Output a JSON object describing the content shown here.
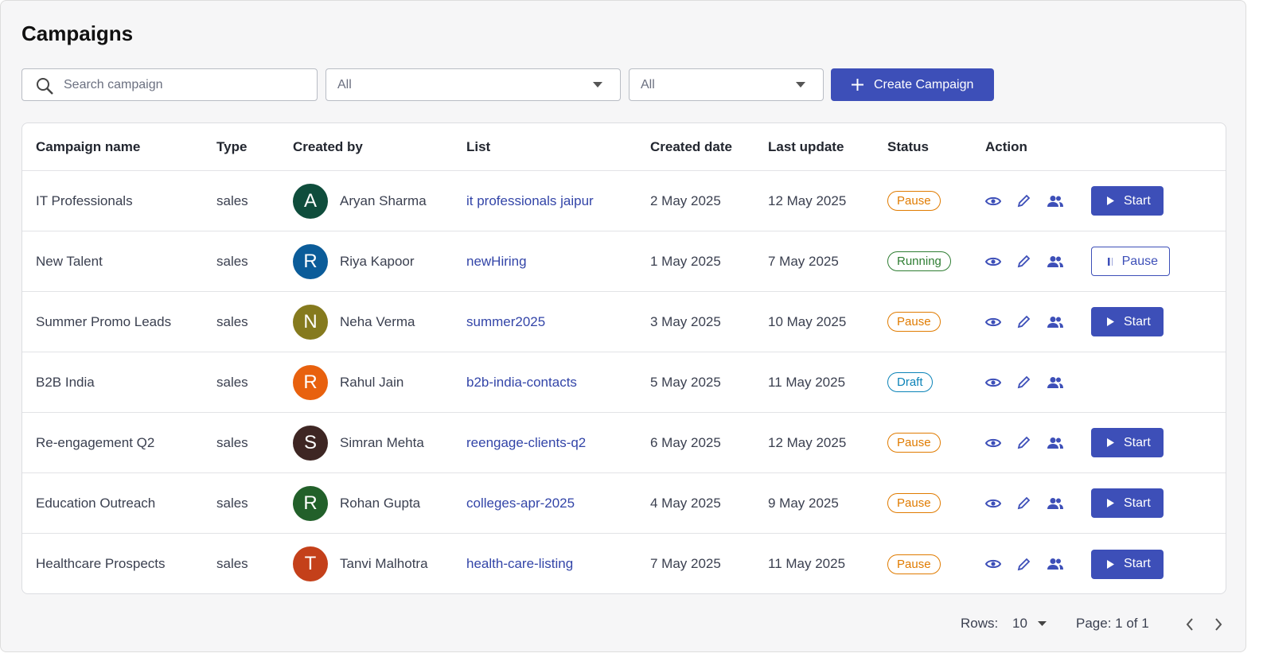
{
  "header": {
    "title": "Campaigns"
  },
  "toolbar": {
    "search_placeholder": "Search campaign",
    "filter_1": "All",
    "filter_2": "All",
    "create_button": "Create Campaign"
  },
  "table": {
    "columns": [
      "Campaign name",
      "Type",
      "Created by",
      "List",
      "Created date",
      "Last update",
      "Status",
      "Action"
    ],
    "rows": [
      {
        "name": "IT Professionals",
        "type": "sales",
        "initial": "A",
        "avatar_color": "#0f4d3c",
        "creator": "Aryan Sharma",
        "list": "it professionals jaipur",
        "created": "2 May 2025",
        "updated": "12 May 2025",
        "status": "Pause",
        "status_color": "#e07b00",
        "action": {
          "label": "Start",
          "style": "filled"
        }
      },
      {
        "name": "New Talent",
        "type": "sales",
        "initial": "R",
        "avatar_color": "#0b5c99",
        "creator": "Riya Kapoor",
        "list": "newHiring",
        "created": "1 May 2025",
        "updated": "7 May 2025",
        "status": "Running",
        "status_color": "#2e7d32",
        "action": {
          "label": "Pause",
          "style": "outlined"
        }
      },
      {
        "name": "Summer Promo Leads",
        "type": "sales",
        "initial": "N",
        "avatar_color": "#857a1e",
        "creator": "Neha Verma",
        "list": "summer2025",
        "created": "3 May 2025",
        "updated": "10 May 2025",
        "status": "Pause",
        "status_color": "#e07b00",
        "action": {
          "label": "Start",
          "style": "filled"
        }
      },
      {
        "name": "B2B India",
        "type": "sales",
        "initial": "R",
        "avatar_color": "#e8610e",
        "creator": "Rahul Jain",
        "list": "b2b-india-contacts",
        "created": "5 May 2025",
        "updated": "11 May 2025",
        "status": "Draft",
        "status_color": "#0b83b8"
      },
      {
        "name": "Re-engagement Q2",
        "type": "sales",
        "initial": "S",
        "avatar_color": "#3e2623",
        "creator": "Simran Mehta",
        "list": "reengage-clients-q2",
        "created": "6 May 2025",
        "updated": "12 May 2025",
        "status": "Pause",
        "status_color": "#e07b00",
        "action": {
          "label": "Start",
          "style": "filled"
        }
      },
      {
        "name": "Education Outreach",
        "type": "sales",
        "initial": "R",
        "avatar_color": "#22602a",
        "creator": "Rohan Gupta",
        "list": "colleges-apr-2025",
        "created": "4 May 2025",
        "updated": "9 May 2025",
        "status": "Pause",
        "status_color": "#e07b00",
        "action": {
          "label": "Start",
          "style": "filled"
        }
      },
      {
        "name": "Healthcare Prospects",
        "type": "sales",
        "initial": "T",
        "avatar_color": "#c4401a",
        "creator": "Tanvi Malhotra",
        "list": "health-care-listing",
        "created": "7 May 2025",
        "updated": "11 May 2025",
        "status": "Pause",
        "status_color": "#e07b00",
        "action": {
          "label": "Start",
          "style": "filled"
        }
      }
    ]
  },
  "pagination": {
    "rows_label": "Rows:",
    "rows_value": 10,
    "page_label": "Page: 1 of 1"
  }
}
